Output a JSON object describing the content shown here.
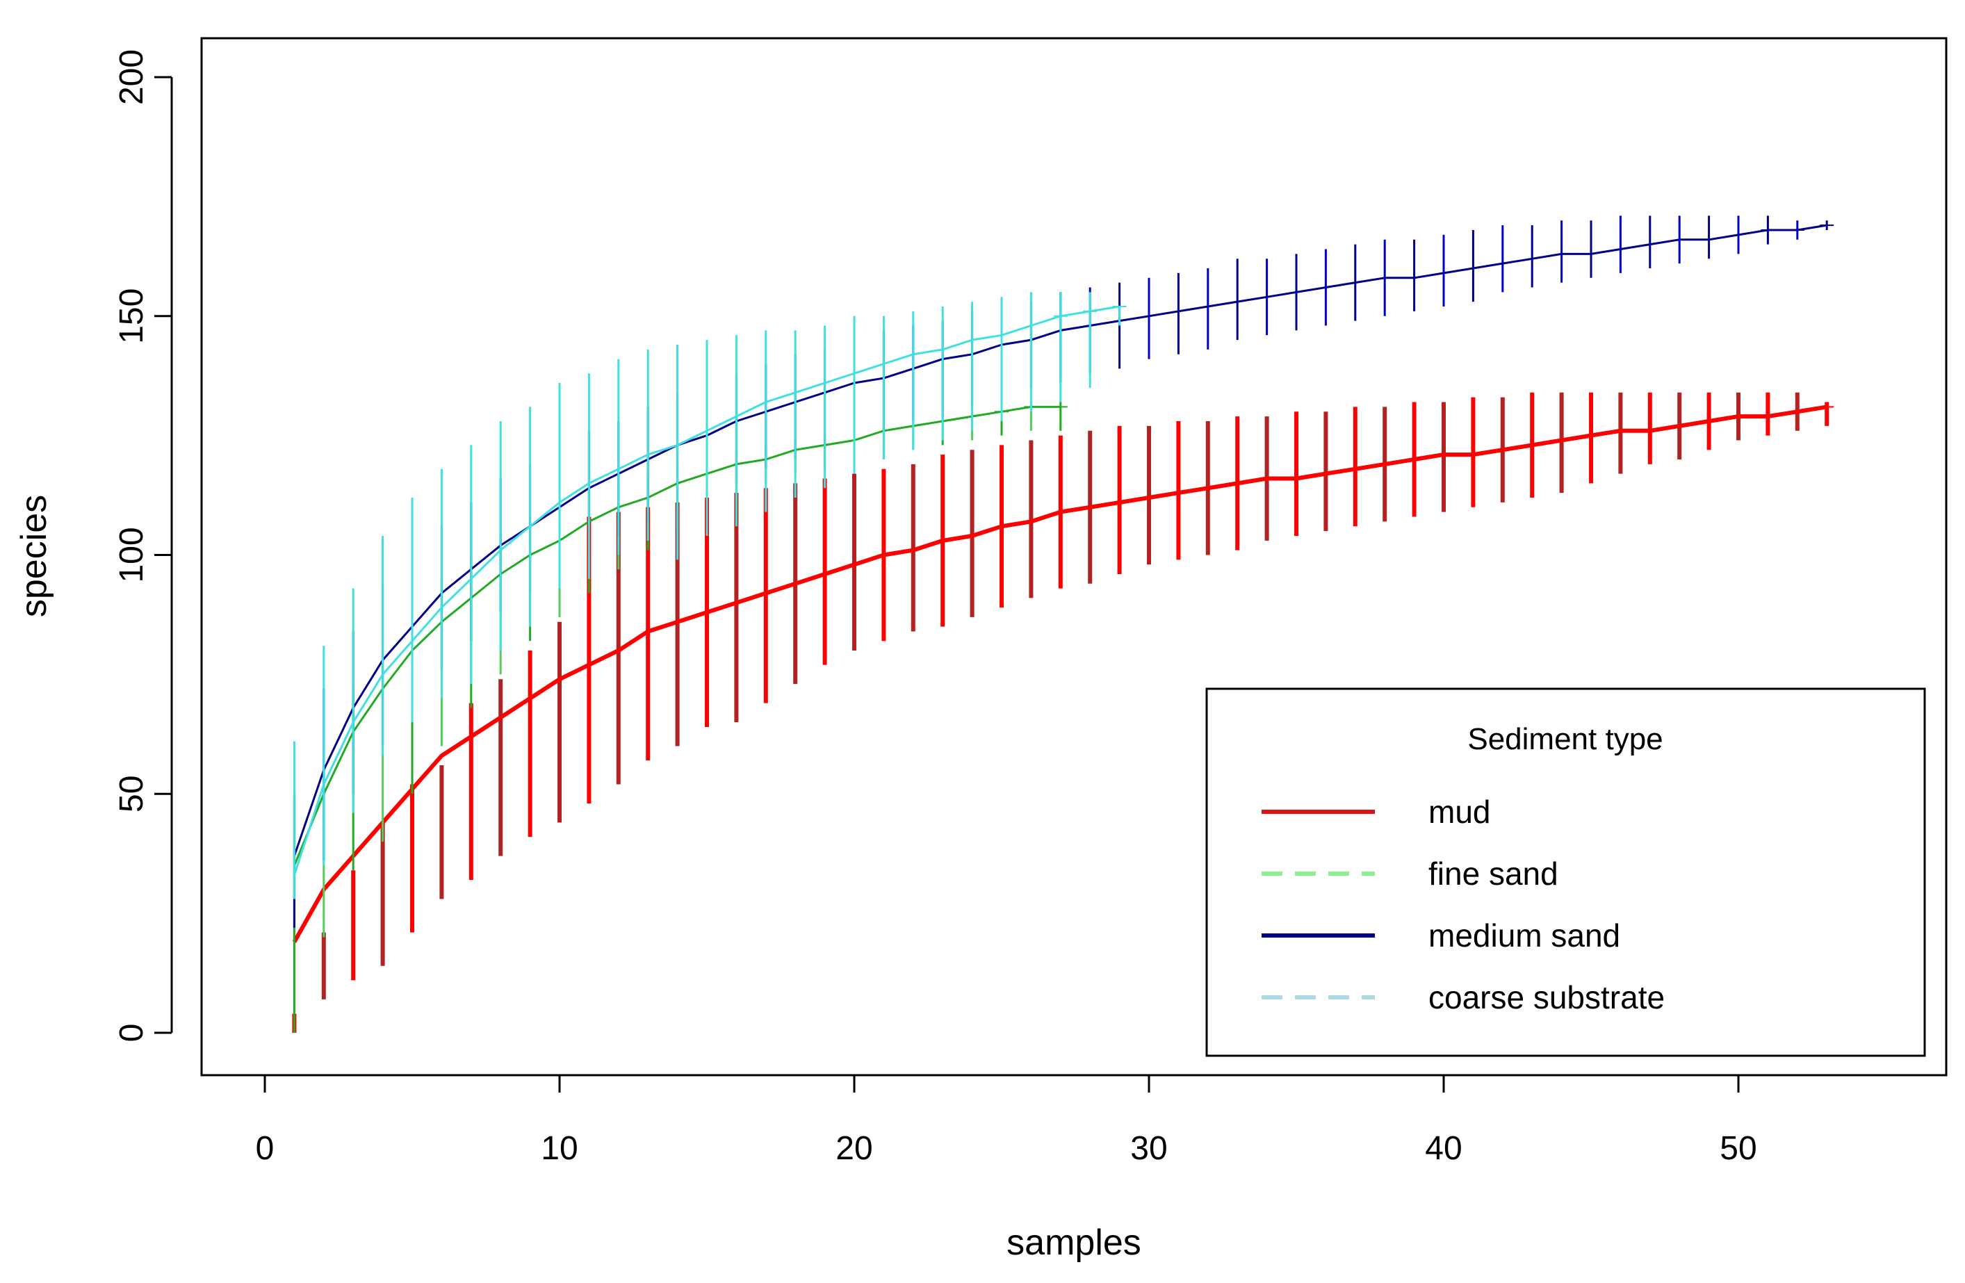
{
  "chart_data": {
    "type": "line",
    "title": "",
    "xlabel": "samples",
    "ylabel": "species",
    "xlim": [
      -2,
      56
    ],
    "ylim": [
      -8,
      208
    ],
    "xticks": [
      0,
      10,
      20,
      30,
      40,
      50
    ],
    "yticks": [
      0,
      50,
      100,
      150,
      200
    ],
    "xtick_labels": [
      "0",
      "10",
      "20",
      "30",
      "40",
      "50"
    ],
    "ytick_labels": [
      "0",
      "50",
      "100",
      "150",
      "200"
    ],
    "grid": false,
    "legend": {
      "title": "Sediment type",
      "position": "bottom-right",
      "entries": [
        {
          "label": "mud",
          "color": "#dd1111",
          "dash": "solid"
        },
        {
          "label": "fine sand",
          "color": "#90ee90",
          "dash": "dashed"
        },
        {
          "label": "medium sand",
          "color": "#00008b",
          "dash": "solid"
        },
        {
          "label": "coarse substrate",
          "color": "#add8e6",
          "dash": "dashed"
        }
      ]
    },
    "series": [
      {
        "name": "mud",
        "line_color": "#ff0000",
        "error_colors": [
          "#ff0000",
          "#b22222"
        ],
        "x": [
          1,
          2,
          3,
          4,
          5,
          6,
          7,
          8,
          9,
          10,
          11,
          12,
          13,
          14,
          15,
          16,
          17,
          18,
          19,
          20,
          21,
          22,
          23,
          24,
          25,
          26,
          27,
          28,
          29,
          30,
          31,
          32,
          33,
          34,
          35,
          36,
          37,
          38,
          39,
          40,
          41,
          42,
          43,
          44,
          45,
          46,
          47,
          48,
          49,
          50,
          51,
          52,
          53
        ],
        "y": [
          19,
          30,
          37,
          44,
          51,
          58,
          62,
          66,
          70,
          74,
          77,
          80,
          84,
          86,
          88,
          90,
          92,
          94,
          96,
          98,
          100,
          101,
          103,
          104,
          106,
          107,
          109,
          110,
          111,
          112,
          113,
          114,
          115,
          116,
          116,
          117,
          118,
          119,
          120,
          121,
          121,
          122,
          123,
          124,
          125,
          126,
          126,
          127,
          128,
          129,
          129,
          130,
          131
        ],
        "err_low": [
          0,
          7,
          11,
          14,
          21,
          28,
          32,
          37,
          41,
          44,
          48,
          52,
          57,
          60,
          64,
          65,
          69,
          73,
          77,
          80,
          82,
          84,
          85,
          87,
          89,
          91,
          93,
          94,
          96,
          98,
          99,
          100,
          101,
          103,
          104,
          105,
          106,
          107,
          108,
          109,
          110,
          111,
          112,
          113,
          115,
          117,
          119,
          120,
          122,
          124,
          125,
          126,
          127
        ],
        "err_high": [
          4,
          21,
          34,
          44,
          52,
          56,
          69,
          74,
          80,
          86,
          108,
          109,
          110,
          111,
          112,
          113,
          114,
          115,
          116,
          117,
          118,
          119,
          121,
          122,
          123,
          124,
          125,
          126,
          127,
          127,
          128,
          128,
          129,
          129,
          130,
          130,
          131,
          131,
          132,
          132,
          133,
          133,
          134,
          134,
          134,
          134,
          134,
          134,
          134,
          134,
          134,
          134,
          132
        ]
      },
      {
        "name": "fine sand",
        "line_color": "#22aa22",
        "error_colors": [
          "#22aa22",
          "#55cc55"
        ],
        "x": [
          1,
          2,
          3,
          4,
          5,
          6,
          7,
          8,
          9,
          10,
          11,
          12,
          13,
          14,
          15,
          16,
          17,
          18,
          19,
          20,
          21,
          22,
          23,
          24,
          25,
          26,
          27
        ],
        "y": [
          35,
          50,
          63,
          72,
          80,
          86,
          91,
          96,
          100,
          103,
          107,
          110,
          112,
          115,
          117,
          119,
          120,
          122,
          123,
          124,
          126,
          127,
          128,
          129,
          130,
          131,
          131
        ],
        "err_low": [
          0,
          20,
          34,
          40,
          50,
          60,
          68,
          75,
          82,
          87,
          92,
          97,
          101,
          105,
          108,
          112,
          115,
          117,
          118,
          119,
          120,
          122,
          123,
          124,
          125,
          126,
          126
        ],
        "err_high": [
          38,
          56,
          72,
          80,
          90,
          95,
          100,
          104,
          107,
          110,
          113,
          115,
          117,
          119,
          121,
          122,
          123,
          124,
          125,
          126,
          127,
          128,
          129,
          130,
          131,
          132,
          132
        ]
      },
      {
        "name": "medium sand",
        "line_color": "#00008b",
        "error_colors": [
          "#00008b",
          "#0000cd"
        ],
        "x": [
          1,
          2,
          3,
          4,
          5,
          6,
          7,
          8,
          9,
          10,
          11,
          12,
          13,
          14,
          15,
          16,
          17,
          18,
          19,
          20,
          21,
          22,
          23,
          24,
          25,
          26,
          27,
          28,
          29,
          30,
          31,
          32,
          33,
          34,
          35,
          36,
          37,
          38,
          39,
          40,
          41,
          42,
          43,
          44,
          45,
          46,
          47,
          48,
          49,
          50,
          51,
          52,
          53
        ],
        "y": [
          37,
          55,
          68,
          78,
          85,
          92,
          97,
          102,
          106,
          110,
          114,
          117,
          120,
          123,
          125,
          128,
          130,
          132,
          134,
          136,
          137,
          139,
          141,
          142,
          144,
          145,
          147,
          148,
          149,
          150,
          151,
          152,
          153,
          154,
          155,
          156,
          157,
          158,
          158,
          159,
          160,
          161,
          162,
          163,
          163,
          164,
          165,
          166,
          166,
          167,
          168,
          168,
          169
        ],
        "err_low": [
          22,
          36,
          50,
          60,
          70,
          76,
          82,
          88,
          92,
          96,
          100,
          104,
          107,
          110,
          113,
          115,
          118,
          120,
          122,
          124,
          126,
          128,
          129,
          131,
          133,
          135,
          136,
          138,
          139,
          141,
          142,
          143,
          145,
          146,
          147,
          148,
          149,
          150,
          151,
          152,
          153,
          155,
          156,
          157,
          158,
          159,
          160,
          161,
          162,
          163,
          165,
          166,
          168
        ],
        "err_high": [
          50,
          72,
          84,
          94,
          100,
          106,
          111,
          116,
          119,
          122,
          126,
          128,
          131,
          134,
          136,
          138,
          140,
          142,
          143,
          145,
          147,
          148,
          149,
          151,
          152,
          153,
          155,
          156,
          157,
          158,
          159,
          160,
          162,
          162,
          163,
          164,
          165,
          166,
          166,
          167,
          168,
          169,
          169,
          170,
          170,
          171,
          171,
          171,
          171,
          171,
          171,
          170,
          170
        ]
      },
      {
        "name": "coarse substrate",
        "line_color": "#40e0e0",
        "error_colors": [
          "#40e0e0",
          "#40e0e0"
        ],
        "x": [
          1,
          2,
          3,
          4,
          5,
          6,
          7,
          8,
          9,
          10,
          11,
          12,
          13,
          14,
          15,
          16,
          17,
          18,
          19,
          20,
          21,
          22,
          23,
          24,
          25,
          26,
          27,
          28,
          29
        ],
        "y": [
          33,
          52,
          65,
          75,
          82,
          89,
          95,
          101,
          106,
          111,
          115,
          118,
          121,
          123,
          126,
          129,
          132,
          134,
          136,
          138,
          140,
          142,
          143,
          145,
          146,
          148,
          150,
          151,
          152
        ],
        "err_low": [
          28,
          35,
          46,
          58,
          65,
          70,
          73,
          80,
          85,
          93,
          95,
          100,
          103,
          99,
          104,
          106,
          109,
          112,
          114,
          117,
          120,
          122,
          124,
          126,
          128,
          130,
          132,
          135,
          148
        ],
        "err_high": [
          61,
          81,
          93,
          104,
          112,
          118,
          123,
          128,
          131,
          136,
          138,
          141,
          143,
          144,
          145,
          146,
          147,
          147,
          148,
          150,
          150,
          151,
          152,
          153,
          154,
          155,
          155,
          155,
          152
        ]
      }
    ]
  }
}
